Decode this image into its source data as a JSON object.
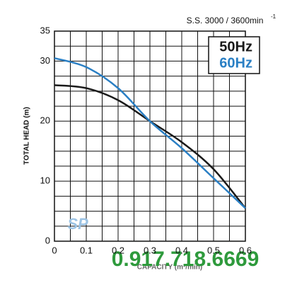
{
  "chart_data": {
    "type": "line",
    "subtitle": "S.S. 3000 / 3600min",
    "subtitle_superscript": "-1",
    "y_label": "TOTAL HEAD (m)",
    "x_label": "CAPACITY (m³/min)",
    "watermark": "0.917.718.6669",
    "logo": "SP",
    "x": [
      0,
      0.1,
      0.2,
      0.3,
      0.4,
      0.5,
      0.6
    ],
    "series": [
      {
        "name": "50Hz",
        "color": "#1a1a1a",
        "values": [
          26,
          25.5,
          23.5,
          20,
          16.5,
          12,
          5.5
        ]
      },
      {
        "name": "60Hz",
        "color": "#2a7fc4",
        "values": [
          30.5,
          29,
          25.5,
          20,
          15.5,
          10.5,
          5.5
        ]
      }
    ],
    "xlim": [
      0,
      0.6
    ],
    "xticks": [
      0,
      0.1,
      0.2,
      0.3,
      0.4,
      0.5,
      0.6
    ],
    "ylim": [
      0,
      35
    ],
    "yticks": [
      0,
      10,
      20,
      30,
      35
    ],
    "xgrid": [
      0,
      0.05,
      0.1,
      0.15,
      0.2,
      0.25,
      0.3,
      0.35,
      0.4,
      0.45,
      0.5,
      0.55,
      0.6
    ],
    "ygrid": [
      0,
      2.5,
      5,
      7.5,
      10,
      12.5,
      15,
      17.5,
      20,
      22.5,
      25,
      27.5,
      30,
      32.5,
      35
    ],
    "legend": "top-right"
  }
}
